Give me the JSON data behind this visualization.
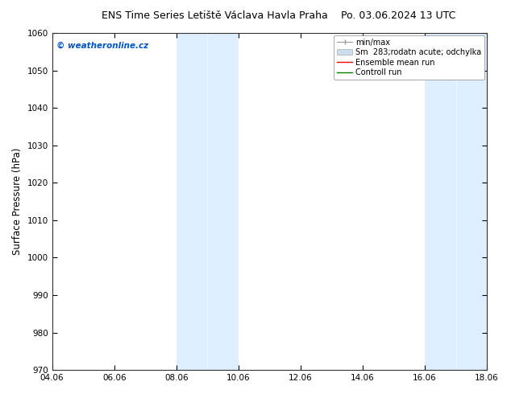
{
  "title": "ENS Time Series Letiště Václava Havla Praha",
  "title_right": "Po. 03.06.2024 13 UTC",
  "ylabel": "Surface Pressure (hPa)",
  "ylim": [
    970,
    1060
  ],
  "yticks": [
    970,
    980,
    990,
    1000,
    1010,
    1020,
    1030,
    1040,
    1050,
    1060
  ],
  "xtick_labels": [
    "04.06",
    "06.06",
    "08.06",
    "10.06",
    "12.06",
    "14.06",
    "16.06",
    "18.06"
  ],
  "xtick_positions": [
    0,
    2,
    4,
    6,
    8,
    10,
    12,
    14
  ],
  "shaded_regions": [
    {
      "x_start": 4,
      "x_end": 5,
      "color": "#ddeeff"
    },
    {
      "x_start": 5,
      "x_end": 6,
      "color": "#ddeeff"
    },
    {
      "x_start": 12,
      "x_end": 13,
      "color": "#ddeeff"
    },
    {
      "x_start": 13,
      "x_end": 14,
      "color": "#ddeeff"
    }
  ],
  "watermark_text": "© weatheronline.cz",
  "watermark_color": "#0055cc",
  "background_color": "#ffffff",
  "plot_bg_color": "#ffffff",
  "shaded_color": "#ddeeff",
  "title_fontsize": 9,
  "tick_fontsize": 7.5,
  "ylabel_fontsize": 8.5,
  "legend_fontsize": 7,
  "watermark_fontsize": 7.5
}
